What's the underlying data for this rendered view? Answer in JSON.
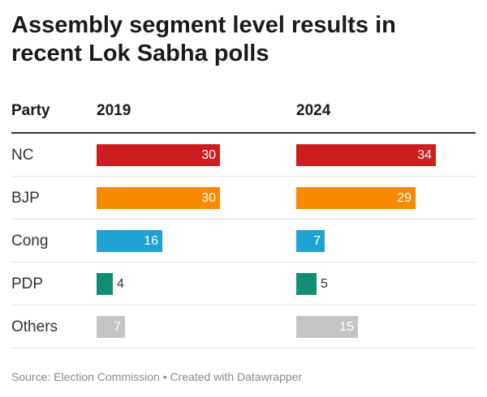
{
  "header": {
    "title": "Assembly segment level results in recent Lok Sabha polls"
  },
  "columns": {
    "party": "Party",
    "y2019": "2019",
    "y2024": "2024"
  },
  "colors": {
    "NC": "#cc1e1f",
    "BJP": "#f78a00",
    "Cong": "#1ea3d4",
    "PDP": "#118d74",
    "Others": "#c4c4c4"
  },
  "chart_data": {
    "type": "bar",
    "orientation": "horizontal",
    "title": "Assembly segment level results in recent Lok Sabha polls",
    "categories": [
      "NC",
      "BJP",
      "Cong",
      "PDP",
      "Others"
    ],
    "series": [
      {
        "name": "2019",
        "values": [
          30,
          30,
          16,
          4,
          7
        ]
      },
      {
        "name": "2024",
        "values": [
          34,
          29,
          7,
          5,
          15
        ]
      }
    ],
    "xlim": [
      0,
      34
    ]
  },
  "footer": {
    "source": "Source: Election Commission • Created with Datawrapper"
  }
}
